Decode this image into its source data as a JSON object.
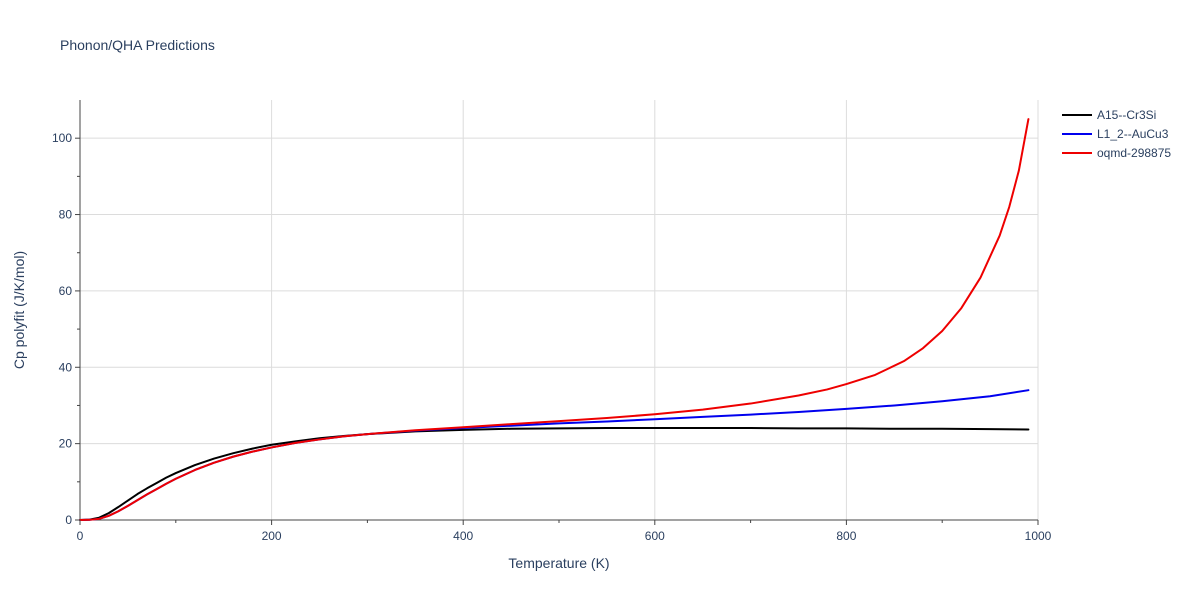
{
  "chart_data": {
    "type": "line",
    "title": "Phonon/QHA Predictions",
    "xlabel": "Temperature (K)",
    "ylabel": "Cp polyfit (J/K/mol)",
    "xlim": [
      0,
      1000
    ],
    "ylim": [
      0,
      110
    ],
    "xticks": [
      0,
      200,
      400,
      600,
      800,
      1000
    ],
    "yticks": [
      0,
      20,
      40,
      60,
      80,
      100
    ],
    "xtick_labels": [
      "0",
      "200",
      "400",
      "600",
      "800",
      "1000"
    ],
    "ytick_labels": [
      "0",
      "20",
      "40",
      "60",
      "80",
      "100"
    ],
    "grid": true,
    "legend_position": "top-right",
    "series": [
      {
        "name": "A15--Cr3Si",
        "color": "#000000",
        "points": [
          [
            0,
            0
          ],
          [
            10,
            0.1
          ],
          [
            20,
            0.6
          ],
          [
            30,
            1.8
          ],
          [
            40,
            3.4
          ],
          [
            50,
            5.1
          ],
          [
            60,
            6.8
          ],
          [
            70,
            8.3
          ],
          [
            80,
            9.7
          ],
          [
            90,
            11.1
          ],
          [
            100,
            12.3
          ],
          [
            120,
            14.4
          ],
          [
            140,
            16.1
          ],
          [
            160,
            17.5
          ],
          [
            180,
            18.7
          ],
          [
            200,
            19.7
          ],
          [
            225,
            20.6
          ],
          [
            250,
            21.4
          ],
          [
            275,
            22.0
          ],
          [
            300,
            22.5
          ],
          [
            350,
            23.2
          ],
          [
            400,
            23.6
          ],
          [
            450,
            23.9
          ],
          [
            500,
            24.0
          ],
          [
            550,
            24.1
          ],
          [
            600,
            24.1
          ],
          [
            650,
            24.1
          ],
          [
            700,
            24.1
          ],
          [
            750,
            24.0
          ],
          [
            800,
            24.0
          ],
          [
            850,
            23.9
          ],
          [
            900,
            23.9
          ],
          [
            950,
            23.8
          ],
          [
            990,
            23.7
          ]
        ]
      },
      {
        "name": "L1_2--AuCu3",
        "color": "#0000ee",
        "points": [
          [
            0,
            0
          ],
          [
            10,
            0.05
          ],
          [
            20,
            0.3
          ],
          [
            30,
            1.1
          ],
          [
            40,
            2.3
          ],
          [
            50,
            3.7
          ],
          [
            60,
            5.2
          ],
          [
            70,
            6.7
          ],
          [
            80,
            8.1
          ],
          [
            90,
            9.5
          ],
          [
            100,
            10.8
          ],
          [
            120,
            13.1
          ],
          [
            140,
            15.0
          ],
          [
            160,
            16.6
          ],
          [
            180,
            17.9
          ],
          [
            200,
            19.0
          ],
          [
            225,
            20.2
          ],
          [
            250,
            21.1
          ],
          [
            275,
            21.9
          ],
          [
            300,
            22.5
          ],
          [
            350,
            23.4
          ],
          [
            400,
            24.1
          ],
          [
            450,
            24.7
          ],
          [
            500,
            25.3
          ],
          [
            550,
            25.8
          ],
          [
            600,
            26.4
          ],
          [
            650,
            27.0
          ],
          [
            700,
            27.6
          ],
          [
            750,
            28.3
          ],
          [
            800,
            29.1
          ],
          [
            850,
            30.0
          ],
          [
            900,
            31.1
          ],
          [
            950,
            32.4
          ],
          [
            990,
            34.0
          ]
        ]
      },
      {
        "name": "oqmd-298875",
        "color": "#ee0000",
        "points": [
          [
            0,
            0
          ],
          [
            10,
            0.05
          ],
          [
            20,
            0.3
          ],
          [
            30,
            1.1
          ],
          [
            40,
            2.3
          ],
          [
            50,
            3.7
          ],
          [
            60,
            5.2
          ],
          [
            70,
            6.7
          ],
          [
            80,
            8.1
          ],
          [
            90,
            9.5
          ],
          [
            100,
            10.8
          ],
          [
            120,
            13.1
          ],
          [
            140,
            15.0
          ],
          [
            160,
            16.6
          ],
          [
            180,
            17.9
          ],
          [
            200,
            19.0
          ],
          [
            225,
            20.2
          ],
          [
            250,
            21.1
          ],
          [
            275,
            21.9
          ],
          [
            300,
            22.5
          ],
          [
            350,
            23.5
          ],
          [
            400,
            24.3
          ],
          [
            450,
            25.1
          ],
          [
            500,
            25.9
          ],
          [
            550,
            26.7
          ],
          [
            600,
            27.7
          ],
          [
            650,
            28.9
          ],
          [
            700,
            30.5
          ],
          [
            750,
            32.6
          ],
          [
            780,
            34.2
          ],
          [
            800,
            35.6
          ],
          [
            830,
            38.0
          ],
          [
            860,
            41.6
          ],
          [
            880,
            45.0
          ],
          [
            900,
            49.5
          ],
          [
            920,
            55.5
          ],
          [
            940,
            63.5
          ],
          [
            960,
            74.5
          ],
          [
            970,
            82.0
          ],
          [
            980,
            91.5
          ],
          [
            990,
            105.0
          ]
        ]
      }
    ]
  }
}
